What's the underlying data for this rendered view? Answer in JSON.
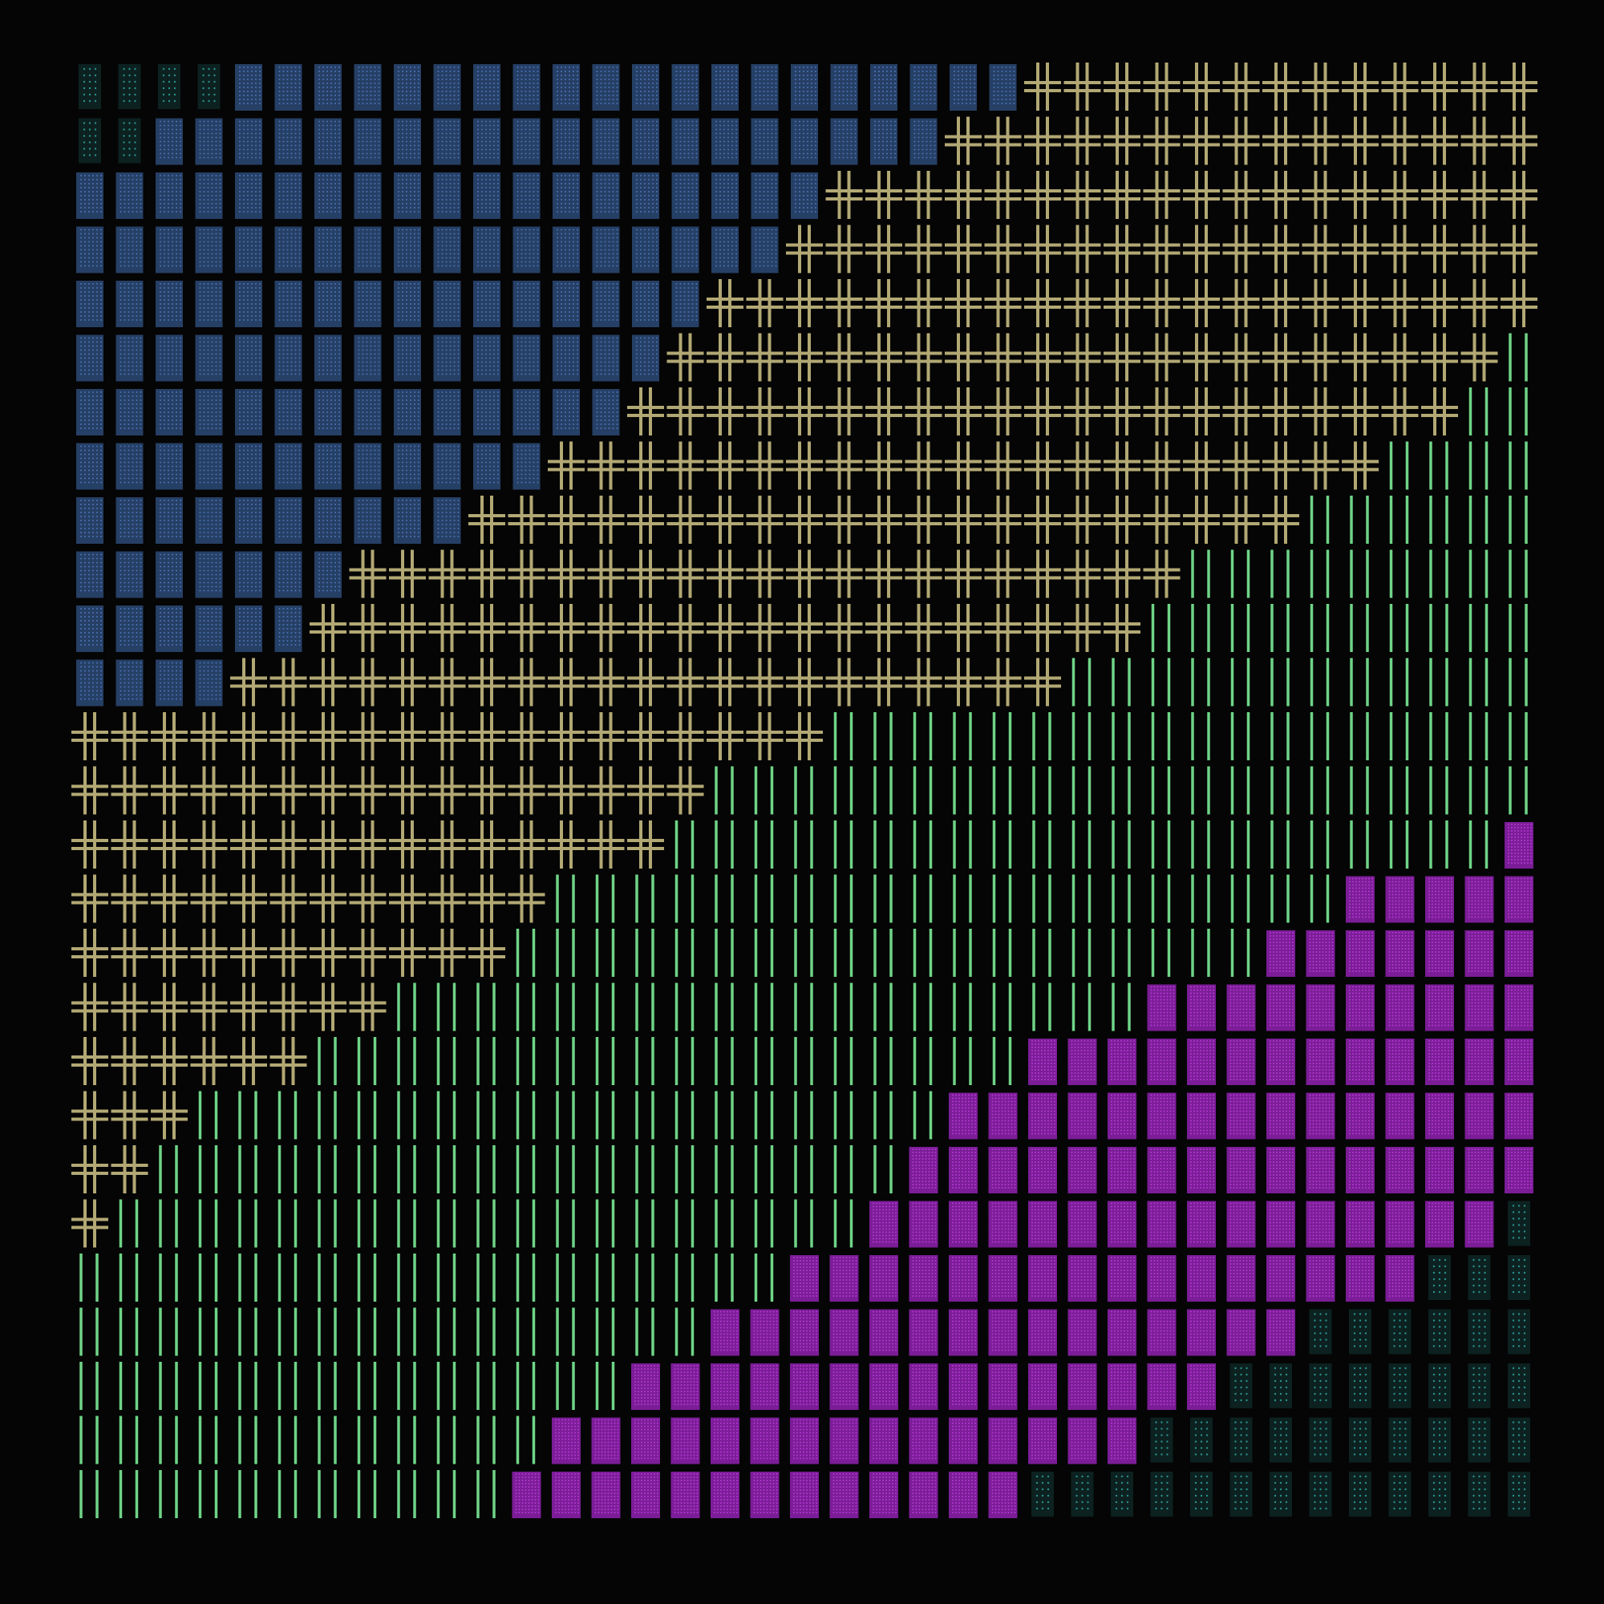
{
  "background": "#050505",
  "grid": {
    "columns": 36,
    "rows": 27
  },
  "glyphs": {
    "dotted": {
      "name": "blue-dotted-block",
      "color": "#4a73b5",
      "fill": "#2a4670"
    },
    "sparse": {
      "name": "cyan-sparse-dots",
      "color": "#2a8f8a",
      "fill": "#0f2b2a"
    },
    "cross": {
      "name": "olive-double-cross",
      "color": "#b2a874"
    },
    "bars": {
      "name": "green-vertical-bars",
      "color": "#6fd487"
    },
    "magenta": {
      "name": "magenta-dotted-block",
      "color": "#b43ad3",
      "fill": "#7b1d97"
    }
  },
  "rows": [
    "ssssddddddddddddddddddddcccccccccccccccccccccbbb",
    "ssddddddddddddddddddddcccccccccccccccccccccbbbbb",
    "dddddddddddddddddddcccccccccccccccccccccbbbbbbbb",
    "ddddddddddddddddddcccccccccccccccccccccbbbbbbbbbb",
    "ddddddddddddddddcccccccccccccccccccccbbbbbbbbbbbbb",
    "dddddddddddddddcccccccccccccccccccccbbbbbbbbbbbbbbb",
    "ddddddddddddddcccccccccccccccccccccbbbbbbbbbbbbbbbbb",
    "ddddddddddddcccccccccccccccccccccbbbbbbbbbbbbbbbbbbbb",
    "ddddddddddcccccccccccccccccccccbbbbbbbbbbbbbbbbbbbbbbb",
    "dddddddcccccccccccccccccccccbbbbbbbbbbbbbbbbbbbbbbbbmm",
    "ddddddcccccccccccccccccccccbbbbbbbbbbbbbbbbbbbbbbmmmmm",
    "ddddcccccccccccccccccccccbbbbbbbbbbbbbbbbbbbbbbmmmmmmmm",
    "cccccccccccccccccccbbbbbbbbbbbbbbbbbbbbbbbmmmmmmmmmmmmmm",
    "ccccccccccccccccbbbbbbbbbbbbbbbbbbbbbbbmmmmmmmmmmmmmmmmm",
    "cccccccccccccccbbbbbbbbbbbbbbbbbbbbbmmmmmmmmmmmmmmmmmmsss",
    "ccccccccccccbbbbbbbbbbbbbbbbbbbbmmmmmmmmmmmmmmmmmmmmmssss",
    "cccccccccccbbbbbbbbbbbbbbbbbbbmmmmmmmmmmmmmmmmmmmmmsssssss",
    "ccccccccbbbbbbbbbbbbbbbbbbbmmmmmmmmmmmmmmmmmmmmsssssssssss",
    "ccccccbbbbbbbbbbbbbbbbbbmmmmmmmmmmmmmmmmmmmmssssssssssssss",
    "cccbbbbbbbbbbbbbbbbbbbmmmmmmmmmmmmmmmmmmmsssssssssssssssss",
    "ccbbbbbbbbbbbbbbbbbbbmmmmmmmmmmmmmmmmmssssssssssssssssssss",
    "cbbbbbbbbbbbbbbbbbbbmmmmmmmmmmmmmmmmsssssssssssssssssssssss",
    "bbbbbbbbbbbbbbbbbbmmmmmmmmmmmmmmmmssssssssssssssssssssssssss",
    "bbbbbbbbbbbbbbbbmmmmmmmmmmmmmmmssssssssssssssssssssssssssssd",
    "bbbbbbbbbbbbbbmmmmmmmmmmmmmmmsssssssssssssssssssssssssssssdd",
    "bbbbbbbbbbbbmmmmmmmmmmmmmmmssssssssssssssssssssssssssssddd",
    "bbbbbbbbbbbmmmmmmmmmmmmmssssssssssssssssssssssssssssdddddd"
  ]
}
